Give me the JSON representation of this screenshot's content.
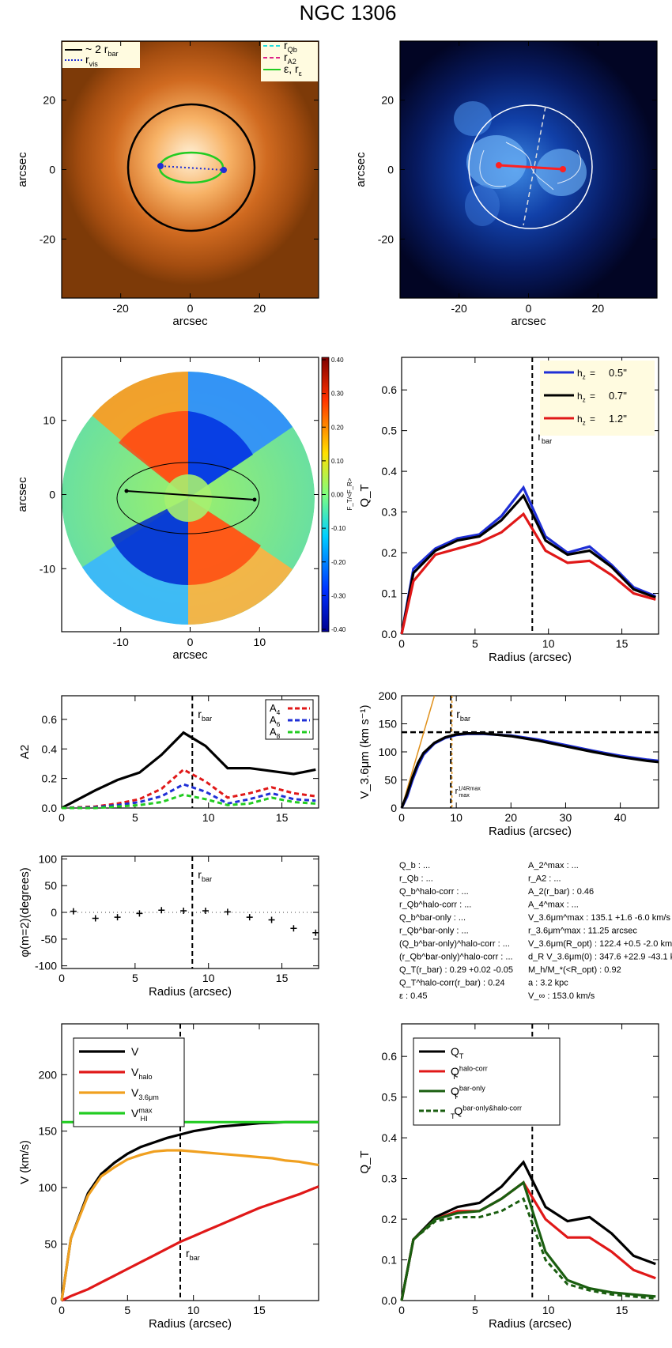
{
  "title": "NGC 1306",
  "colors": {
    "black": "#000000",
    "blue": "#1f2fd6",
    "red": "#e01818",
    "green": "#22cc22",
    "orange": "#f0a020",
    "cyan": "#22dddd",
    "magenta": "#dd2288",
    "darkgreen": "#1a5e10"
  },
  "panel_image": {
    "xlabel": "arcsec",
    "ylabel": "arcsec",
    "xticks": [
      "-20",
      "0",
      "20"
    ],
    "yticks": [
      "20",
      "0",
      "-20"
    ],
    "legend": [
      {
        "label": "~ 2 r",
        "sub": "bar",
        "color": "#000000",
        "style": "solid"
      },
      {
        "label": "r",
        "sub": "vis",
        "color": "#1f2fd6",
        "style": "dotted"
      },
      {
        "label": "r",
        "sub": "Qb",
        "color": "#22dddd",
        "style": "dashed"
      },
      {
        "label": "r",
        "sub": "A2",
        "color": "#dd2288",
        "style": "dashed"
      },
      {
        "label": "ε, r",
        "sub": "ε",
        "color": "#22cc22",
        "style": "solid"
      }
    ]
  },
  "panel_qmap": {
    "xlabel": "arcsec",
    "ylabel": "arcsec",
    "xticks": [
      "-20",
      "0",
      "20"
    ],
    "yticks": [
      "20",
      "0",
      "-20"
    ]
  },
  "panel_ratio": {
    "xlabel": "arcsec",
    "ylabel": "arcsec",
    "xticks": [
      "-10",
      "0",
      "10"
    ],
    "yticks": [
      "10",
      "0",
      "-10"
    ],
    "colorbar_ticks": [
      "0.40",
      "0.30",
      "0.20",
      "0.10",
      "0.00",
      "-0.10",
      "-0.20",
      "-0.30",
      "-0.40"
    ],
    "colorbar_label": "F_T/<F_R>"
  },
  "chart_data": [
    {
      "type": "line",
      "id": "qt_hz",
      "xlabel": "Radius (arcsec)",
      "ylabel": "Q_T",
      "xlim": [
        0,
        17.5
      ],
      "ylim": [
        0,
        0.68
      ],
      "xticks": [
        "0",
        "5",
        "10",
        "15"
      ],
      "yticks": [
        "0.0",
        "0.1",
        "0.2",
        "0.3",
        "0.4",
        "0.5",
        "0.6"
      ],
      "rbar": 8.9,
      "rbar_label": "r",
      "rbar_sub": "bar",
      "x": [
        0,
        0.8,
        2.3,
        3.8,
        5.3,
        6.8,
        8.3,
        9.8,
        11.3,
        12.8,
        14.3,
        15.8,
        17.3
      ],
      "series": [
        {
          "name": "h_z= 0.5''",
          "color": "#1f2fd6",
          "values": [
            0,
            0.16,
            0.21,
            0.235,
            0.245,
            0.29,
            0.36,
            0.24,
            0.2,
            0.215,
            0.17,
            0.115,
            0.093
          ]
        },
        {
          "name": "h_z= 0.7''",
          "color": "#000000",
          "values": [
            0,
            0.15,
            0.205,
            0.23,
            0.24,
            0.28,
            0.34,
            0.23,
            0.195,
            0.205,
            0.165,
            0.11,
            0.09
          ]
        },
        {
          "name": "h_z= 1.2''",
          "color": "#e01818",
          "values": [
            0,
            0.13,
            0.195,
            0.21,
            0.225,
            0.25,
            0.295,
            0.205,
            0.175,
            0.18,
            0.145,
            0.1,
            0.085
          ]
        }
      ],
      "legend_values": [
        "0.5''",
        "0.7''",
        "1.2''"
      ]
    },
    {
      "type": "line",
      "id": "a2",
      "xlabel": "",
      "ylabel": "A2",
      "xlim": [
        0,
        17.5
      ],
      "ylim": [
        0,
        0.76
      ],
      "xticks": [
        "0",
        "5",
        "10",
        "15"
      ],
      "yticks": [
        "0.0",
        "0.2",
        "0.4",
        "0.6"
      ],
      "rbar": 8.9,
      "rbar_label": "r",
      "rbar_sub": "bar",
      "x": [
        0,
        2.3,
        3.8,
        5.3,
        6.8,
        8.3,
        9.8,
        11.3,
        12.8,
        14.3,
        15.8,
        17.3
      ],
      "series": [
        {
          "name": "A2",
          "color": "#000000",
          "style": "solid",
          "values": [
            0,
            0.12,
            0.19,
            0.24,
            0.36,
            0.51,
            0.42,
            0.27,
            0.27,
            0.25,
            0.23,
            0.26
          ]
        },
        {
          "name": "A4",
          "color": "#e01818",
          "style": "dashed",
          "values": [
            0,
            0.01,
            0.03,
            0.06,
            0.13,
            0.26,
            0.18,
            0.07,
            0.1,
            0.14,
            0.1,
            0.08
          ]
        },
        {
          "name": "A6",
          "color": "#1f2fd6",
          "style": "dashed",
          "values": [
            0,
            0.005,
            0.02,
            0.04,
            0.08,
            0.16,
            0.11,
            0.03,
            0.06,
            0.1,
            0.06,
            0.05
          ]
        },
        {
          "name": "A8",
          "color": "#22cc22",
          "style": "dashed",
          "values": [
            0,
            0,
            0.01,
            0.02,
            0.04,
            0.09,
            0.06,
            0.02,
            0.03,
            0.07,
            0.04,
            0.03
          ]
        }
      ],
      "legend": [
        "A",
        "A",
        "A"
      ],
      "legend_sub": [
        "4",
        "6",
        "8"
      ]
    },
    {
      "type": "line",
      "id": "vrot",
      "xlabel": "Radius (arcsec)",
      "ylabel": "V_3.6μm (km s⁻¹)",
      "xlim": [
        0,
        47
      ],
      "ylim": [
        0,
        200
      ],
      "xticks": [
        "0",
        "10",
        "20",
        "30",
        "40"
      ],
      "yticks": [
        "0",
        "50",
        "100",
        "150",
        "200"
      ],
      "rbar": 9.0,
      "rbar_label": "r",
      "rbar_sub": "bar",
      "vflat": 135,
      "inner_slope": {
        "x": [
          0,
          6
        ],
        "y": [
          0,
          200
        ],
        "color": "#e0901a"
      },
      "rmax_line": 9.2,
      "rmax_label": "r",
      "rmax_sub": "max",
      "rmax_sup": "1/4Rmax",
      "x": [
        0,
        1,
        2,
        3,
        4,
        6,
        8,
        10,
        12,
        15,
        20,
        25,
        30,
        35,
        40,
        45,
        47
      ],
      "series": [
        {
          "name": "V_3.6μm",
          "color": "#1f2fd6",
          "values": [
            0,
            20,
            50,
            75,
            95,
            115,
            125,
            130,
            132,
            132,
            129,
            122,
            112,
            102,
            93,
            86,
            84
          ]
        },
        {
          "name": "V_3.6μm (fit)",
          "color": "#000000",
          "values": [
            0,
            25,
            55,
            80,
            98,
            116,
            126,
            131,
            133,
            133,
            128,
            120,
            110,
            100,
            91,
            84,
            82
          ]
        }
      ]
    },
    {
      "type": "scatter",
      "id": "phase",
      "xlabel": "Radius (arcsec)",
      "ylabel": "φ(m=2)(degrees)",
      "xlim": [
        0,
        17.5
      ],
      "ylim": [
        -105,
        105
      ],
      "xticks": [
        "0",
        "5",
        "10",
        "15"
      ],
      "yticks": [
        "100",
        "50",
        "0",
        "-50",
        "-100"
      ],
      "rbar": 8.9,
      "rbar_label": "r",
      "rbar_sub": "bar",
      "x": [
        0.8,
        2.3,
        3.8,
        5.3,
        6.8,
        8.3,
        9.8,
        11.3,
        12.8,
        14.3,
        15.8,
        17.3
      ],
      "values": [
        2,
        -11,
        -9,
        -2,
        4,
        3,
        3,
        1,
        -9,
        -14,
        -30,
        -38
      ]
    },
    {
      "type": "line",
      "id": "vcomp",
      "xlabel": "Radius (arcsec)",
      "ylabel": "V (km/s)",
      "xlim": [
        0,
        19.5
      ],
      "ylim": [
        0,
        245
      ],
      "xticks": [
        "0",
        "5",
        "10",
        "15"
      ],
      "yticks": [
        "0",
        "50",
        "100",
        "150",
        "200"
      ],
      "rbar": 9.0,
      "rbar_label": "r",
      "rbar_sub": "bar",
      "x": [
        0,
        0.7,
        2,
        3,
        4,
        5,
        6,
        7,
        8,
        9,
        10,
        11,
        12,
        13,
        14,
        15,
        16,
        17,
        18,
        19.5
      ],
      "series": [
        {
          "name": "V",
          "color": "#000000",
          "values": [
            0,
            55,
            95,
            112,
            122,
            130,
            136,
            140,
            144,
            147,
            150,
            152,
            154,
            155,
            156,
            157,
            157.5,
            158,
            158,
            158
          ]
        },
        {
          "name": "V_halo",
          "color": "#e01818",
          "values": [
            0,
            4,
            10,
            16,
            22,
            28,
            34,
            40,
            46,
            52,
            57,
            62,
            67,
            72,
            77,
            82,
            86,
            90,
            94,
            101
          ]
        },
        {
          "name": "V_3.6μm",
          "color": "#f0a020",
          "values": [
            0,
            55,
            93,
            110,
            118,
            125,
            129,
            132,
            133,
            133,
            132,
            131,
            130,
            129,
            128,
            127,
            126,
            124,
            123,
            120
          ]
        },
        {
          "name": "V_HI^max",
          "color": "#22cc22",
          "values": [
            158,
            158,
            158,
            158,
            158,
            158,
            158,
            158,
            158,
            158,
            158,
            158,
            158,
            158,
            158,
            158,
            158,
            158,
            158,
            158
          ]
        }
      ],
      "legend": [
        {
          "t": "V",
          "sub": "",
          "sup": ""
        },
        {
          "t": "V",
          "sub": "halo",
          "sup": ""
        },
        {
          "t": "V",
          "sub": "3.6μm",
          "sup": ""
        },
        {
          "t": "V",
          "sub": "HI",
          "sup": "max"
        }
      ]
    },
    {
      "type": "line",
      "id": "qt_corr",
      "xlabel": "Radius (arcsec)",
      "ylabel": "Q_T",
      "xlim": [
        0,
        17.5
      ],
      "ylim": [
        0,
        0.68
      ],
      "xticks": [
        "0",
        "5",
        "10",
        "15"
      ],
      "yticks": [
        "0.0",
        "0.1",
        "0.2",
        "0.3",
        "0.4",
        "0.5",
        "0.6"
      ],
      "rbar": 8.9,
      "rbar_label": "r",
      "rbar_sub": "bar",
      "x": [
        0,
        0.8,
        2.3,
        3.8,
        5.3,
        6.8,
        8.3,
        9.8,
        11.3,
        12.8,
        14.3,
        15.8,
        17.3
      ],
      "series": [
        {
          "name": "Q_T",
          "color": "#000000",
          "style": "solid",
          "values": [
            0,
            0.15,
            0.205,
            0.23,
            0.24,
            0.28,
            0.34,
            0.23,
            0.195,
            0.205,
            0.165,
            0.11,
            0.09
          ]
        },
        {
          "name": "Q_T^halo-corr",
          "color": "#e01818",
          "style": "solid",
          "values": [
            0,
            0.15,
            0.2,
            0.22,
            0.22,
            0.25,
            0.29,
            0.2,
            0.155,
            0.155,
            0.12,
            0.075,
            0.055
          ]
        },
        {
          "name": "Q_T^bar-only",
          "color": "#1a5e10",
          "style": "solid",
          "values": [
            0,
            0.15,
            0.2,
            0.215,
            0.22,
            0.25,
            0.29,
            0.12,
            0.05,
            0.03,
            0.02,
            0.015,
            0.01
          ]
        },
        {
          "name": "Q_T^bar-only&halo-corr",
          "color": "#1a5e10",
          "style": "dashed",
          "values": [
            0,
            0.15,
            0.195,
            0.205,
            0.205,
            0.22,
            0.25,
            0.1,
            0.04,
            0.025,
            0.015,
            0.01,
            0.005
          ]
        }
      ],
      "legend": [
        {
          "t": "Q",
          "sub": "T",
          "sup": ""
        },
        {
          "t": "Q",
          "sub": "T",
          "sup": "halo-corr"
        },
        {
          "t": "Q",
          "sub": "T",
          "sup": "bar-only"
        },
        {
          "t": "Q",
          "sub": "T",
          "sup": "bar-only&halo-corr"
        }
      ]
    }
  ],
  "info": {
    "left": [
      "Q_b : ...",
      "r_Qb : ...",
      "Q_b^halo-corr : ...",
      "r_Qb^halo-corr : ...",
      "Q_b^bar-only : ...",
      "r_Qb^bar-only : ...",
      "(Q_b^bar-only)^halo-corr : ...",
      "(r_Qb^bar-only)^halo-corr : ...",
      "Q_T(r_bar) : 0.29 +0.02 -0.05",
      "Q_T^halo-corr(r_bar) : 0.24",
      "ε : 0.45"
    ],
    "right": [
      "A_2^max : ...",
      "r_A2 : ...",
      "A_2(r_bar) : 0.46",
      "A_4^max : ...",
      "V_3.6μm^max : 135.1 +1.6 -6.0 km/s",
      "r_3.6μm^max : 11.25 arcsec",
      "V_3.6μm(R_opt) : 122.4 +0.5 -2.0 km/s",
      "d_R V_3.6μm(0) : 347.6 +22.9 -43.1 km/s/kpc",
      "M_h/M_*(<R_opt) : 0.92",
      "a : 3.2 kpc",
      "V_∞ : 153.0 km/s"
    ]
  }
}
